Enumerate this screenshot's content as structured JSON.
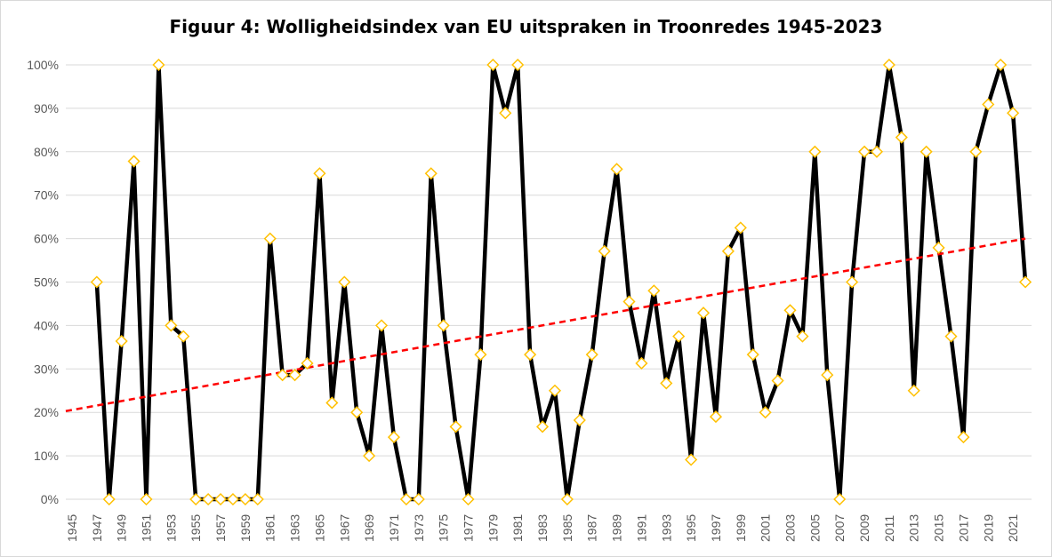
{
  "chart_data": {
    "type": "line",
    "title": "Figuur 4: Wolligheidsindex van EU uitspraken in Troonredes 1945-2023",
    "xlabel": "",
    "ylabel": "",
    "ylim": [
      0,
      100
    ],
    "y_ticks": [
      "0%",
      "10%",
      "20%",
      "30%",
      "40%",
      "50%",
      "60%",
      "70%",
      "80%",
      "90%",
      "100%"
    ],
    "x": [
      1945,
      1946,
      1947,
      1948,
      1949,
      1950,
      1951,
      1952,
      1953,
      1954,
      1955,
      1956,
      1957,
      1958,
      1959,
      1960,
      1961,
      1962,
      1963,
      1964,
      1965,
      1966,
      1967,
      1968,
      1969,
      1970,
      1971,
      1972,
      1973,
      1974,
      1975,
      1976,
      1977,
      1978,
      1979,
      1980,
      1981,
      1982,
      1983,
      1984,
      1985,
      1986,
      1987,
      1988,
      1989,
      1990,
      1991,
      1992,
      1993,
      1994,
      1995,
      1996,
      1997,
      1998,
      1999,
      2000,
      2001,
      2002,
      2003,
      2004,
      2005,
      2006,
      2007,
      2008,
      2009,
      2010,
      2011,
      2012,
      2013,
      2014,
      2015,
      2016,
      2017,
      2018,
      2019,
      2020,
      2021,
      2022
    ],
    "x_tick_labels": [
      "1945",
      "1947",
      "1949",
      "1951",
      "1953",
      "1955",
      "1957",
      "1959",
      "1961",
      "1963",
      "1965",
      "1967",
      "1969",
      "1971",
      "1973",
      "1975",
      "1977",
      "1979",
      "1981",
      "1983",
      "1985",
      "1987",
      "1989",
      "1991",
      "1993",
      "1995",
      "1997",
      "1999",
      "2001",
      "2003",
      "2005",
      "2007",
      "2009",
      "2011",
      "2013",
      "2015",
      "2017",
      "2019",
      "2021"
    ],
    "series": [
      {
        "name": "Wolligheidsindex",
        "color": "#000000",
        "marker_color": "#FFC000",
        "values": [
          null,
          null,
          50,
          0,
          36.4,
          77.8,
          0,
          100,
          40,
          37.5,
          0,
          0,
          0,
          0,
          0,
          0,
          60,
          28.6,
          28.6,
          31.3,
          75,
          22.2,
          50,
          20,
          10,
          40,
          14.3,
          0,
          0,
          75,
          40,
          16.7,
          0,
          33.3,
          100,
          88.9,
          100,
          33.3,
          16.7,
          25,
          0,
          18.2,
          33.3,
          57.1,
          76,
          45.5,
          31.3,
          48,
          26.7,
          37.5,
          9.1,
          42.9,
          19,
          57.1,
          62.5,
          33.3,
          20,
          27.3,
          43.5,
          37.5,
          80,
          28.6,
          0,
          50,
          80,
          80,
          100,
          83.3,
          25,
          80,
          57.9,
          37.5,
          14.3,
          80,
          90.9,
          100,
          88.9,
          50
        ]
      }
    ],
    "trendline": {
      "type": "linear",
      "color": "#FF0000",
      "start": [
        1945,
        20.3
      ],
      "end": [
        2022,
        60
      ]
    },
    "grid": true,
    "legend": "none"
  }
}
